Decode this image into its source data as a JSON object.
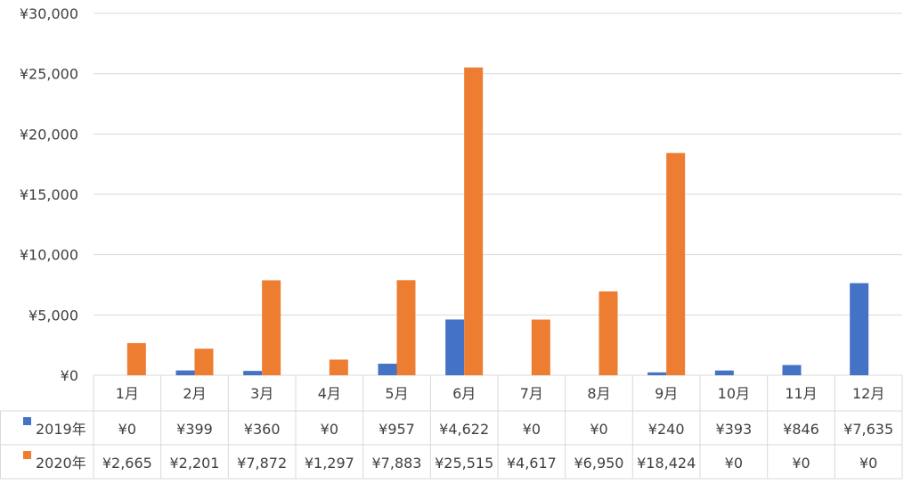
{
  "chart_data": {
    "type": "bar",
    "categories": [
      "1月",
      "2月",
      "3月",
      "4月",
      "5月",
      "6月",
      "7月",
      "8月",
      "9月",
      "10月",
      "11月",
      "12月"
    ],
    "series": [
      {
        "name": "2019年",
        "color": "#4472C4",
        "values": [
          0,
          399,
          360,
          0,
          957,
          4622,
          0,
          0,
          240,
          393,
          846,
          7635
        ],
        "labels": [
          "¥0",
          "¥399",
          "¥360",
          "¥0",
          "¥957",
          "¥4,622",
          "¥0",
          "¥0",
          "¥240",
          "¥393",
          "¥846",
          "¥7,635"
        ]
      },
      {
        "name": "2020年",
        "color": "#ED7D31",
        "values": [
          2665,
          2201,
          7872,
          1297,
          7883,
          25515,
          4617,
          6950,
          18424,
          0,
          0,
          0
        ],
        "labels": [
          "¥2,665",
          "¥2,201",
          "¥7,872",
          "¥1,297",
          "¥7,883",
          "¥25,515",
          "¥4,617",
          "¥6,950",
          "¥18,424",
          "¥0",
          "¥0",
          "¥0"
        ]
      }
    ],
    "ylim": [
      0,
      30000
    ],
    "yticks": [
      0,
      5000,
      10000,
      15000,
      20000,
      25000,
      30000
    ],
    "ytick_labels": [
      "¥0",
      "¥5,000",
      "¥10,000",
      "¥15,000",
      "¥20,000",
      "¥25,000",
      "¥30,000"
    ],
    "gridlines": true,
    "legend": "data-table"
  }
}
